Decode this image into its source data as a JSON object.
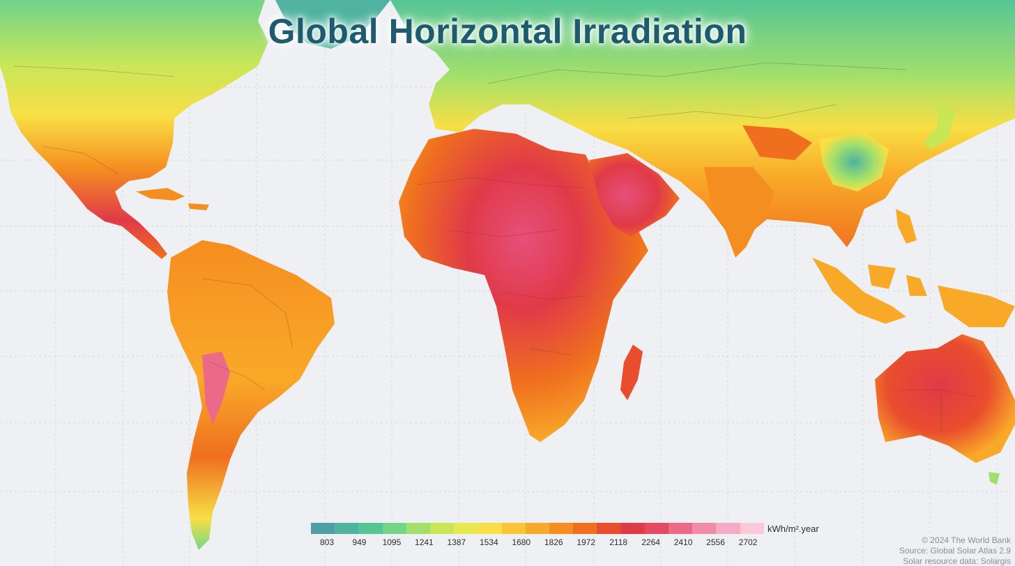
{
  "title": "Global Horizontal Irradiation",
  "legend": {
    "unit": "kWh/m².year",
    "ticks": [
      "803",
      "949",
      "1095",
      "1241",
      "1387",
      "1534",
      "1680",
      "1826",
      "1972",
      "2118",
      "2264",
      "2410",
      "2556",
      "2702"
    ],
    "colors": [
      "#4e9fa8",
      "#4fb39f",
      "#55c596",
      "#73d686",
      "#a3e06b",
      "#c8e655",
      "#e6e94f",
      "#f8df45",
      "#fcc534",
      "#f9a928",
      "#f58e20",
      "#ef6f1f",
      "#e94d2d",
      "#e03a48",
      "#e54a63",
      "#ec6a88",
      "#f08ca8",
      "#f5abc3",
      "#fbc9d8"
    ]
  },
  "credits": {
    "copyright": "© 2024 The World Bank",
    "source": "Source: Global Solar Atlas 2.9",
    "resource": "Solar resource data: Solargis"
  }
}
